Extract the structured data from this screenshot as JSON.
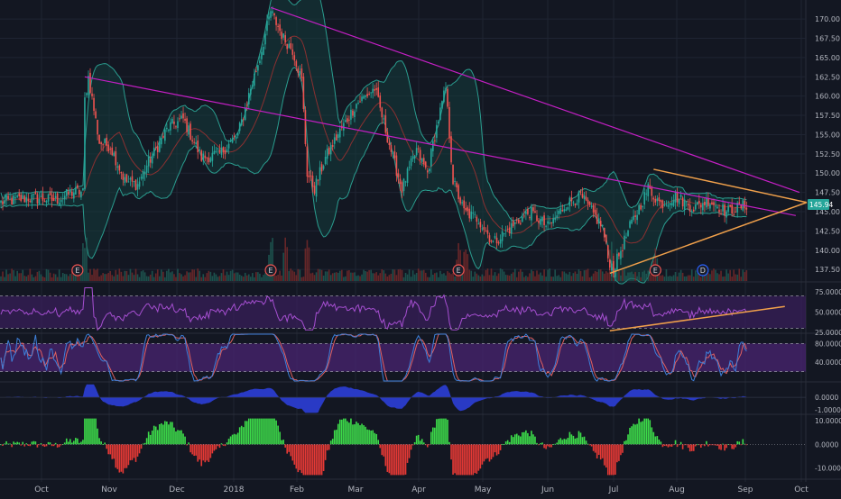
{
  "colors": {
    "background": "#131722",
    "grid": "#1f2433",
    "up": "#26a69a",
    "down": "#ef5350",
    "bb_line": "#2a9d8f",
    "bb_fill": "#143c3c",
    "channel": "#c41fc4",
    "triangle": "#f0a04b",
    "rsi_band": "#3b1f5c",
    "rsi_line": "#a64fd1",
    "stoch_band": "#4a2472",
    "stoch_k": "#3d7fd9",
    "stoch_d": "#e06060",
    "macd": "#2a3ccf",
    "hist_up": "#3ddc4a",
    "hist_down": "#e53935",
    "text": "#b2b5be",
    "price_tag": "#26a69a"
  },
  "chart_data": [
    {
      "type": "candlestick",
      "pane": "price",
      "y_ticks": [
        "170.00",
        "167.50",
        "165.00",
        "162.50",
        "160.00",
        "157.50",
        "155.00",
        "152.50",
        "150.00",
        "147.50",
        "145.00",
        "142.50",
        "140.00",
        "137.50"
      ],
      "ylim": [
        136,
        172
      ],
      "last_price_tag": "145.94",
      "x_ticks": [
        "Oct",
        "Nov",
        "Dec",
        "2018",
        "Feb",
        "Mar",
        "Apr",
        "May",
        "Jun",
        "Jul",
        "Aug",
        "Sep",
        "Oct"
      ],
      "price_anchors": [
        [
          0,
          146.2
        ],
        [
          15,
          146.8
        ],
        [
          30,
          146.5
        ],
        [
          40,
          147.6
        ],
        [
          45,
          147.5
        ],
        [
          46,
          159.5
        ],
        [
          48,
          162.5
        ],
        [
          54,
          154
        ],
        [
          60,
          153.5
        ],
        [
          68,
          149
        ],
        [
          75,
          148.5
        ],
        [
          80,
          151
        ],
        [
          92,
          156
        ],
        [
          100,
          157
        ],
        [
          110,
          152
        ],
        [
          120,
          152.5
        ],
        [
          130,
          155
        ],
        [
          137,
          161
        ],
        [
          142,
          165
        ],
        [
          148,
          171
        ],
        [
          155,
          167.5
        ],
        [
          160,
          166
        ],
        [
          165,
          162
        ],
        [
          168,
          150
        ],
        [
          172,
          148
        ],
        [
          178,
          152
        ],
        [
          185,
          155
        ],
        [
          195,
          159
        ],
        [
          205,
          161
        ],
        [
          215,
          152
        ],
        [
          220,
          148
        ],
        [
          228,
          153
        ],
        [
          234,
          150
        ],
        [
          238,
          155
        ],
        [
          244,
          161
        ],
        [
          248,
          149
        ],
        [
          254,
          145
        ],
        [
          262,
          144
        ],
        [
          270,
          141
        ],
        [
          280,
          143
        ],
        [
          290,
          145
        ],
        [
          300,
          143
        ],
        [
          310,
          146
        ],
        [
          318,
          147
        ],
        [
          324,
          145
        ],
        [
          330,
          143
        ],
        [
          333,
          139
        ],
        [
          336,
          137.5
        ],
        [
          340,
          140
        ],
        [
          345,
          143
        ],
        [
          355,
          148
        ],
        [
          362,
          146
        ],
        [
          370,
          147
        ],
        [
          380,
          145.5
        ],
        [
          388,
          146.5
        ],
        [
          398,
          145
        ],
        [
          410,
          146
        ]
      ],
      "volume_bars": 410,
      "earnings_markers": [
        {
          "label": "E",
          "x": 42
        },
        {
          "label": "E",
          "x": 148
        },
        {
          "label": "E",
          "x": 251
        },
        {
          "label": "E",
          "x": 359
        },
        {
          "label": "D",
          "x": 385
        }
      ],
      "channel_upper": [
        [
          148,
          171.5
        ],
        [
          438,
          147.5
        ]
      ],
      "channel_lower": [
        [
          46,
          162.5
        ],
        [
          436,
          144.5
        ]
      ],
      "triangle_upper": [
        [
          358,
          150.5
        ],
        [
          442,
          146.2
        ]
      ],
      "triangle_lower": [
        [
          334,
          137
        ],
        [
          442,
          146.2
        ]
      ]
    },
    {
      "type": "line",
      "pane": "rsi",
      "y_ticks": [
        "75.0000",
        "50.0000",
        "25.0000"
      ],
      "ylim": [
        25,
        85
      ],
      "band": [
        30,
        70
      ],
      "trendline": [
        [
          334,
          27
        ],
        [
          430,
          57
        ]
      ]
    },
    {
      "type": "line",
      "pane": "stochastic",
      "y_ticks": [
        "80.0000",
        "40.0000"
      ],
      "ylim": [
        0,
        100
      ],
      "band": [
        20,
        80
      ]
    },
    {
      "type": "area",
      "pane": "macd",
      "y_ticks": [
        "0.0000",
        "-1.0000"
      ],
      "ylim": [
        -1.3,
        1.1
      ]
    },
    {
      "type": "bar",
      "pane": "momentum",
      "y_ticks": [
        "10.0000",
        "0.0000",
        "-10.0000"
      ],
      "ylim": [
        -14,
        12
      ]
    }
  ]
}
